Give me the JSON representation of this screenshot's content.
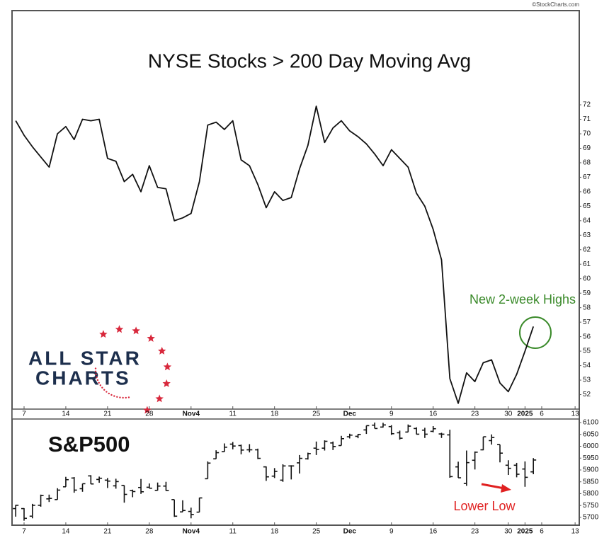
{
  "source": "©StockCharts.com",
  "logo": {
    "line1": "ALL STAR",
    "line2": "CHARTS"
  },
  "chart_data": [
    {
      "type": "line",
      "title": "NYSE Stocks > 200 Day Moving Avg",
      "annotation": "New 2-week Highs",
      "color": "#111111",
      "annotation_color": "#3a8a2a",
      "categories": [
        null,
        "7",
        null,
        null,
        null,
        null,
        "14",
        null,
        null,
        null,
        null,
        "21",
        null,
        null,
        null,
        null,
        "28",
        null,
        null,
        null,
        null,
        "Nov4",
        null,
        null,
        null,
        null,
        "11",
        null,
        null,
        null,
        null,
        "18",
        null,
        null,
        null,
        null,
        "25",
        null,
        null,
        null,
        "Dec",
        null,
        null,
        null,
        null,
        "9",
        null,
        null,
        null,
        null,
        "16",
        null,
        null,
        null,
        null,
        "23",
        null,
        null,
        null,
        "30",
        null,
        "2025",
        null,
        "6",
        null,
        null,
        null,
        "13"
      ],
      "values": [
        70.9,
        69.9,
        69.1,
        68.4,
        67.7,
        70.0,
        70.5,
        69.6,
        71.0,
        70.9,
        71.0,
        68.3,
        68.1,
        66.7,
        67.2,
        66.0,
        67.8,
        66.3,
        66.2,
        64.0,
        64.2,
        64.5,
        66.7,
        70.6,
        70.8,
        70.3,
        70.9,
        68.2,
        67.8,
        66.5,
        64.9,
        66.0,
        65.4,
        65.6,
        67.6,
        69.2,
        71.9,
        69.4,
        70.4,
        70.9,
        70.2,
        69.8,
        69.3,
        68.6,
        67.8,
        68.9,
        68.3,
        67.7,
        65.9,
        65.0,
        63.4,
        61.3,
        53.1,
        51.4,
        53.5,
        52.9,
        54.2,
        54.4,
        52.8,
        52.2,
        53.4,
        55.0,
        56.7,
        null,
        null,
        null,
        null,
        null
      ],
      "ylim": [
        51,
        78.5
      ],
      "yticks": [
        52,
        53,
        54,
        55,
        56,
        57,
        58,
        59,
        60,
        61,
        62,
        63,
        64,
        65,
        66,
        67,
        68,
        69,
        70,
        71,
        72
      ]
    },
    {
      "type": "ohlc",
      "title": "S&P500",
      "annotation": "Lower Low",
      "color": "#111111",
      "annotation_color": "#e02020",
      "categories": [
        null,
        "7",
        null,
        null,
        null,
        null,
        "14",
        null,
        null,
        null,
        null,
        "21",
        null,
        null,
        null,
        null,
        "28",
        null,
        null,
        null,
        null,
        "Nov4",
        null,
        null,
        null,
        null,
        "11",
        null,
        null,
        null,
        null,
        "18",
        null,
        null,
        null,
        null,
        "25",
        null,
        null,
        null,
        "Dec",
        null,
        null,
        null,
        null,
        "9",
        null,
        null,
        null,
        null,
        "16",
        null,
        null,
        null,
        null,
        "23",
        null,
        null,
        null,
        "30",
        null,
        "2025",
        null,
        "6",
        null,
        null,
        null,
        "13"
      ],
      "open": [
        5737,
        5737,
        5705,
        5751,
        5778,
        5775,
        5829,
        5866,
        5821,
        5875,
        5860,
        5857,
        5833,
        5835,
        5813,
        5826,
        5827,
        5814,
        5832,
        5775,
        5723,
        5725,
        5722,
        5863,
        5947,
        5977,
        6009,
        6003,
        5985,
        5985,
        5913,
        5874,
        5857,
        5917,
        5930,
        5947,
        5992,
        5992,
        6014,
        6003,
        6040,
        6042,
        6069,
        6089,
        6081,
        6083,
        6057,
        6060,
        6075,
        6068,
        6063,
        6052,
        6048,
        5913,
        5843,
        5941,
        5985,
        6024,
        6007,
        5920,
        5920,
        5904,
        5892,
        null,
        null,
        null,
        null,
        null
      ],
      "high": [
        5753,
        5739,
        5757,
        5796,
        5796,
        5823,
        5871,
        5870,
        5842,
        5878,
        5872,
        5866,
        5863,
        5835,
        5817,
        5862,
        5843,
        5847,
        5850,
        5775,
        5772,
        5741,
        5783,
        5936,
        5983,
        6012,
        6018,
        6007,
        6009,
        5990,
        5915,
        5908,
        5924,
        5920,
        5963,
        5973,
        6020,
        6025,
        6020,
        6044,
        6053,
        6052,
        6087,
        6100,
        6099,
        6089,
        6066,
        6092,
        6080,
        6078,
        6085,
        6057,
        6070,
        5935,
        5982,
        5978,
        6040,
        6050,
        6007,
        5941,
        5930,
        5936,
        5950,
        null,
        null,
        null,
        null,
        null
      ],
      "low": [
        5703,
        5686,
        5696,
        5745,
        5765,
        5775,
        5829,
        5804,
        5808,
        5840,
        5846,
        5824,
        5821,
        5762,
        5785,
        5799,
        5823,
        5813,
        5812,
        5702,
        5723,
        5696,
        5722,
        5863,
        5947,
        5977,
        5987,
        5966,
        5974,
        5946,
        5854,
        5866,
        5850,
        5860,
        5885,
        5944,
        5963,
        5982,
        5984,
        6003,
        6033,
        6034,
        6052,
        6075,
        6079,
        6048,
        6028,
        6060,
        6050,
        6035,
        6059,
        6035,
        5867,
        5867,
        5833,
        5902,
        5983,
        6007,
        5932,
        5879,
        5869,
        5829,
        5882,
        null,
        null,
        null,
        null,
        null
      ],
      "close": [
        5751,
        5696,
        5751,
        5792,
        5780,
        5815,
        5859,
        5815,
        5842,
        5841,
        5865,
        5853,
        5851,
        5797,
        5809,
        5808,
        5823,
        5832,
        5813,
        5705,
        5729,
        5712,
        5782,
        5929,
        5973,
        5996,
        6001,
        5984,
        5985,
        5949,
        5871,
        5894,
        5917,
        5917,
        5949,
        5969,
        5987,
        6021,
        5999,
        6032,
        6047,
        6050,
        6087,
        6075,
        6090,
        6053,
        6034,
        6085,
        6051,
        6051,
        6074,
        6051,
        5872,
        5867,
        5931,
        5975,
        6040,
        6037,
        5971,
        5907,
        5882,
        5869,
        5942,
        null,
        null,
        null,
        null,
        null
      ],
      "ylim": [
        5667,
        6115
      ],
      "yticks": [
        5700,
        5750,
        5800,
        5850,
        5900,
        5950,
        6000,
        6050,
        6100
      ]
    }
  ]
}
